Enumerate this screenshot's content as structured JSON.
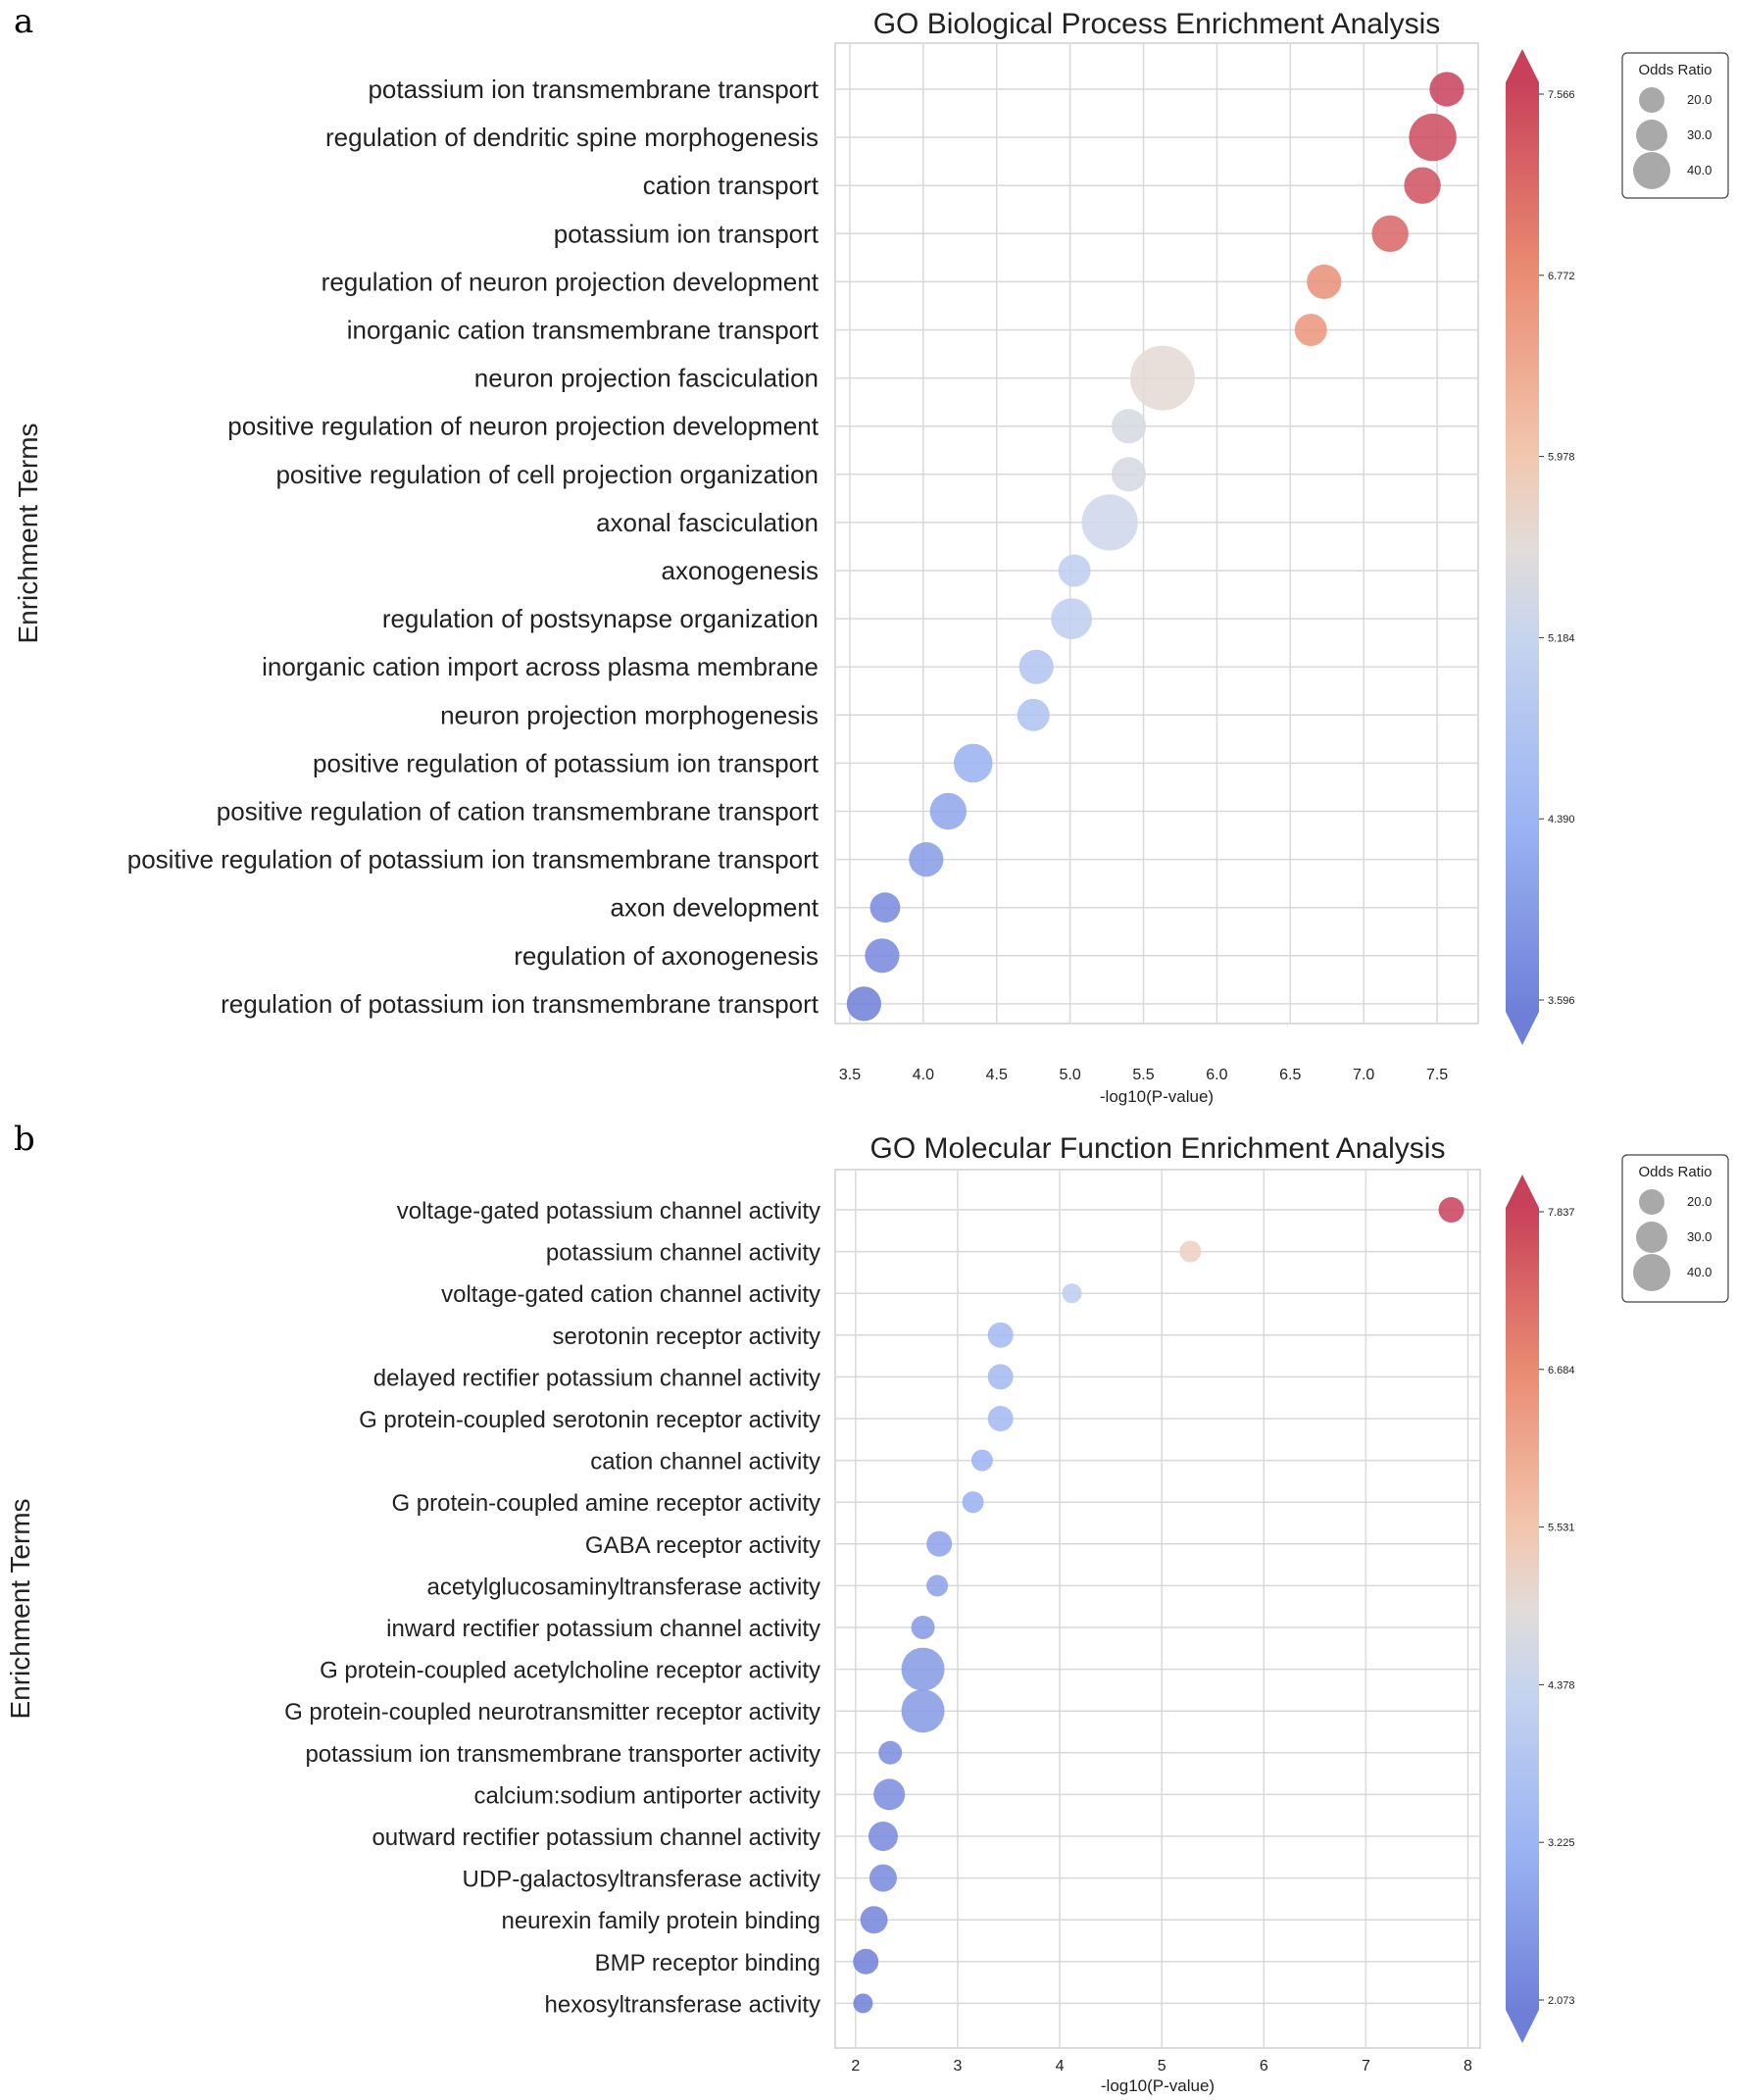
{
  "chart_data": [
    {
      "panel": "a",
      "type": "scatter",
      "title": "GO Biological Process Enrichment Analysis",
      "xlabel": "-log10(P-value)",
      "ylabel": "Enrichment Terms",
      "xlim": [
        3.4,
        7.78
      ],
      "xticks": [
        3.5,
        4.0,
        4.5,
        5.0,
        5.5,
        6.0,
        6.5,
        7.0,
        7.5
      ],
      "xtick_labels": [
        "3.5",
        "4.0",
        "4.5",
        "5.0",
        "5.5",
        "6.0",
        "6.5",
        "7.0",
        "7.5"
      ],
      "terms": [
        "potassium ion transmembrane transport",
        "regulation of dendritic spine morphogenesis",
        "cation transport",
        "potassium ion transport",
        "regulation of neuron projection development",
        "inorganic cation transmembrane transport",
        "neuron projection fasciculation",
        "positive regulation of neuron projection development",
        "positive regulation of cell projection organization",
        "axonal fasciculation",
        "axonogenesis",
        "regulation of postsynapse organization",
        "inorganic cation import across plasma membrane",
        "neuron projection morphogenesis",
        "positive regulation of potassium ion transport",
        "positive regulation of cation transmembrane transport",
        "positive regulation of potassium ion transmembrane transport",
        "axon development",
        "regulation of axonogenesis",
        "regulation of potassium ion transmembrane transport"
      ],
      "x": [
        7.566,
        7.47,
        7.4,
        7.18,
        6.73,
        6.64,
        5.63,
        5.4,
        5.4,
        5.27,
        5.03,
        5.01,
        4.77,
        4.75,
        4.34,
        4.17,
        4.02,
        3.74,
        3.72,
        3.596
      ],
      "odds_ratio": [
        16,
        22,
        17,
        17,
        16,
        15,
        30,
        16,
        16,
        26,
        15,
        19,
        16,
        15,
        18,
        17,
        16,
        14,
        16,
        16
      ],
      "colorbar": {
        "min": 3.596,
        "max": 7.566,
        "ticks": [
          "7.566",
          "6.772",
          "5.978",
          "5.184",
          "4.390",
          "3.596"
        ]
      },
      "legend": {
        "title": "Odds Ratio",
        "sizes": [
          20.0,
          30.0,
          40.0
        ],
        "labels": [
          "20.0",
          "30.0",
          "40.0"
        ]
      }
    },
    {
      "panel": "b",
      "type": "scatter",
      "title": "GO Molecular Function Enrichment Analysis",
      "xlabel": "-log10(P-value)",
      "ylabel": "Enrichment Terms",
      "xlim": [
        1.8,
        8.12
      ],
      "xticks": [
        2,
        3,
        4,
        5,
        6,
        7,
        8
      ],
      "xtick_labels": [
        "2",
        "3",
        "4",
        "5",
        "6",
        "7",
        "8"
      ],
      "terms": [
        "voltage-gated potassium channel activity",
        "potassium channel activity",
        "voltage-gated cation channel activity",
        "serotonin receptor activity",
        "delayed rectifier potassium channel activity",
        "G protein-coupled serotonin receptor activity",
        "cation channel activity",
        "G protein-coupled amine receptor activity",
        "GABA receptor activity",
        "acetylglucosaminyltransferase activity",
        "inward rectifier potassium channel activity",
        "G protein-coupled acetylcholine receptor activity",
        "G protein-coupled neurotransmitter receptor activity",
        "potassium ion transmembrane transporter activity",
        "calcium:sodium antiporter activity",
        "outward rectifier potassium channel activity",
        "UDP-galactosyltransferase activity",
        "neurexin family protein binding",
        "BMP receptor binding",
        "hexosyltransferase activity"
      ],
      "x": [
        7.837,
        5.28,
        4.12,
        3.42,
        3.42,
        3.42,
        3.24,
        3.15,
        2.82,
        2.8,
        2.66,
        2.66,
        2.66,
        2.34,
        2.33,
        2.27,
        2.27,
        2.18,
        2.1,
        2.073
      ],
      "odds_ratio": [
        13,
        11,
        10,
        13,
        13,
        13,
        11,
        11,
        13,
        11,
        12,
        22,
        22,
        12,
        16,
        15,
        14,
        14,
        13,
        10
      ],
      "colorbar": {
        "min": 2.073,
        "max": 7.837,
        "ticks": [
          "7.837",
          "6.684",
          "5.531",
          "4.378",
          "3.225",
          "2.073"
        ]
      },
      "legend": {
        "title": "Odds Ratio",
        "sizes": [
          20.0,
          30.0,
          40.0
        ],
        "labels": [
          "20.0",
          "30.0",
          "40.0"
        ]
      }
    }
  ]
}
